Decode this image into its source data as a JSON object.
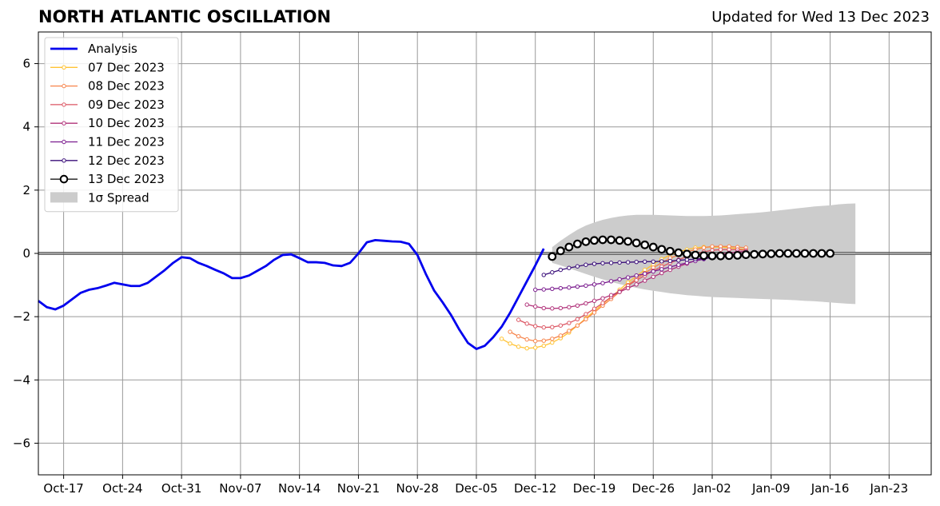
{
  "chart_data": {
    "type": "line",
    "title": "NORTH ATLANTIC OSCILLATION",
    "subtitle": "Updated for Wed 13 Dec 2023",
    "xlabel": "",
    "ylabel": "",
    "ylim": [
      -7,
      7
    ],
    "y_ticks": [
      -6,
      -4,
      -2,
      0,
      2,
      4,
      6
    ],
    "y_tick_labels": [
      "−6",
      "−4",
      "−2",
      "0",
      "2",
      "4",
      "6"
    ],
    "xlim": [
      "2023-10-14",
      "2024-01-28"
    ],
    "x_ticks": [
      "2023-10-17",
      "2023-10-24",
      "2023-10-31",
      "2023-11-07",
      "2023-11-14",
      "2023-11-21",
      "2023-11-28",
      "2023-12-05",
      "2023-12-12",
      "2023-12-19",
      "2023-12-26",
      "2024-01-02",
      "2024-01-09",
      "2024-01-16",
      "2024-01-23"
    ],
    "x_tick_labels": [
      "Oct-17",
      "Oct-24",
      "Oct-31",
      "Nov-07",
      "Nov-14",
      "Nov-21",
      "Nov-28",
      "Dec-05",
      "Dec-12",
      "Dec-19",
      "Dec-26",
      "Jan-02",
      "Jan-09",
      "Jan-16",
      "Jan-23"
    ],
    "grid": true,
    "legend_position": "top-left",
    "series": [
      {
        "name": "Analysis",
        "color": "#0000ee",
        "style": "line",
        "start": "2023-10-14",
        "values": [
          -1.5,
          -1.7,
          -1.77,
          -1.65,
          -1.45,
          -1.25,
          -1.15,
          -1.1,
          -1.02,
          -0.93,
          -0.98,
          -1.03,
          -1.03,
          -0.93,
          -0.73,
          -0.53,
          -0.3,
          -0.12,
          -0.15,
          -0.3,
          -0.4,
          -0.52,
          -0.63,
          -0.78,
          -0.78,
          -0.7,
          -0.55,
          -0.4,
          -0.2,
          -0.05,
          -0.03,
          -0.15,
          -0.28,
          -0.28,
          -0.3,
          -0.38,
          -0.4,
          -0.3,
          0.0,
          0.35,
          0.42,
          0.4,
          0.38,
          0.37,
          0.3,
          -0.05,
          -0.65,
          -1.18,
          -1.55,
          -1.95,
          -2.42,
          -2.83,
          -3.02,
          -2.92,
          -2.65,
          -2.32,
          -1.88,
          -1.38,
          -0.88,
          -0.38,
          0.15
        ]
      },
      {
        "name": "07 Dec 2023",
        "color": "#ffc335",
        "style": "small",
        "start": "2023-12-08",
        "values": [
          -2.7,
          -2.85,
          -2.95,
          -3.0,
          -2.98,
          -2.92,
          -2.82,
          -2.68,
          -2.5,
          -2.28,
          -2.05,
          -1.82,
          -1.6,
          -1.38,
          -1.15,
          -0.92,
          -0.72,
          -0.52,
          -0.35,
          -0.18,
          -0.05,
          0.05,
          0.12,
          0.18,
          0.2,
          0.2,
          0.2,
          0.18,
          0.15,
          0.12
        ]
      },
      {
        "name": "08 Dec 2023",
        "color": "#f7844b",
        "style": "small",
        "start": "2023-12-09",
        "values": [
          -2.48,
          -2.62,
          -2.72,
          -2.77,
          -2.76,
          -2.7,
          -2.6,
          -2.45,
          -2.28,
          -2.08,
          -1.87,
          -1.65,
          -1.44,
          -1.22,
          -1.0,
          -0.8,
          -0.62,
          -0.45,
          -0.3,
          -0.15,
          -0.05,
          0.05,
          0.12,
          0.18,
          0.22,
          0.22,
          0.22,
          0.2,
          0.18
        ]
      },
      {
        "name": "09 Dec 2023",
        "color": "#dc5663",
        "style": "small",
        "start": "2023-12-10",
        "values": [
          -2.1,
          -2.22,
          -2.3,
          -2.34,
          -2.33,
          -2.28,
          -2.2,
          -2.08,
          -1.92,
          -1.75,
          -1.57,
          -1.38,
          -1.2,
          -1.02,
          -0.85,
          -0.7,
          -0.55,
          -0.42,
          -0.3,
          -0.2,
          -0.1,
          -0.02,
          0.05,
          0.1,
          0.12,
          0.12,
          0.12,
          0.1
        ]
      },
      {
        "name": "10 Dec 2023",
        "color": "#b1327a",
        "style": "small",
        "start": "2023-12-11",
        "values": [
          -1.62,
          -1.68,
          -1.73,
          -1.74,
          -1.73,
          -1.7,
          -1.65,
          -1.58,
          -1.5,
          -1.42,
          -1.32,
          -1.22,
          -1.1,
          -0.98,
          -0.86,
          -0.74,
          -0.62,
          -0.52,
          -0.42,
          -0.32,
          -0.23,
          -0.15,
          -0.08,
          -0.02,
          0.02,
          0.05,
          0.06
        ]
      },
      {
        "name": "11 Dec 2023",
        "color": "#7a1b8e",
        "style": "small",
        "start": "2023-12-12",
        "values": [
          -1.15,
          -1.14,
          -1.12,
          -1.1,
          -1.08,
          -1.05,
          -1.02,
          -0.98,
          -0.94,
          -0.88,
          -0.82,
          -0.76,
          -0.7,
          -0.64,
          -0.57,
          -0.5,
          -0.43,
          -0.36,
          -0.3,
          -0.24,
          -0.18,
          -0.12,
          -0.08,
          -0.04,
          -0.02,
          -0.01
        ]
      },
      {
        "name": "12 Dec 2023",
        "color": "#3a0e7a",
        "style": "small",
        "start": "2023-12-13",
        "values": [
          -0.68,
          -0.6,
          -0.52,
          -0.46,
          -0.41,
          -0.36,
          -0.33,
          -0.31,
          -0.3,
          -0.29,
          -0.28,
          -0.27,
          -0.26,
          -0.26,
          -0.25,
          -0.24,
          -0.22,
          -0.2,
          -0.18,
          -0.16,
          -0.13,
          -0.1,
          -0.08,
          -0.06,
          -0.04
        ]
      },
      {
        "name": "13 Dec 2023",
        "color": "#000000",
        "style": "open",
        "start": "2023-12-14",
        "values": [
          -0.1,
          0.08,
          0.2,
          0.3,
          0.37,
          0.41,
          0.43,
          0.43,
          0.41,
          0.38,
          0.33,
          0.27,
          0.2,
          0.13,
          0.07,
          0.02,
          -0.02,
          -0.05,
          -0.07,
          -0.08,
          -0.08,
          -0.07,
          -0.06,
          -0.04,
          -0.03,
          -0.02,
          -0.01,
          0.0,
          0.0,
          0.0,
          0.0,
          0.0,
          0.0,
          0.0
        ]
      }
    ],
    "spread": {
      "name": "1σ Spread",
      "color": "#cccccc",
      "start": "2023-12-14",
      "upper": [
        0.2,
        0.4,
        0.58,
        0.75,
        0.88,
        0.98,
        1.06,
        1.12,
        1.17,
        1.2,
        1.22,
        1.22,
        1.22,
        1.21,
        1.2,
        1.19,
        1.18,
        1.18,
        1.18,
        1.19,
        1.2,
        1.22,
        1.24,
        1.26,
        1.28,
        1.3,
        1.33,
        1.36,
        1.39,
        1.42,
        1.45,
        1.48,
        1.5,
        1.52,
        1.55,
        1.57,
        1.58
      ],
      "lower": [
        -0.3,
        -0.38,
        -0.47,
        -0.56,
        -0.65,
        -0.74,
        -0.82,
        -0.9,
        -0.97,
        -1.03,
        -1.09,
        -1.14,
        -1.18,
        -1.22,
        -1.26,
        -1.29,
        -1.32,
        -1.34,
        -1.36,
        -1.38,
        -1.39,
        -1.4,
        -1.41,
        -1.42,
        -1.43,
        -1.44,
        -1.45,
        -1.46,
        -1.47,
        -1.48,
        -1.5,
        -1.51,
        -1.53,
        -1.55,
        -1.57,
        -1.59,
        -1.6
      ]
    }
  }
}
